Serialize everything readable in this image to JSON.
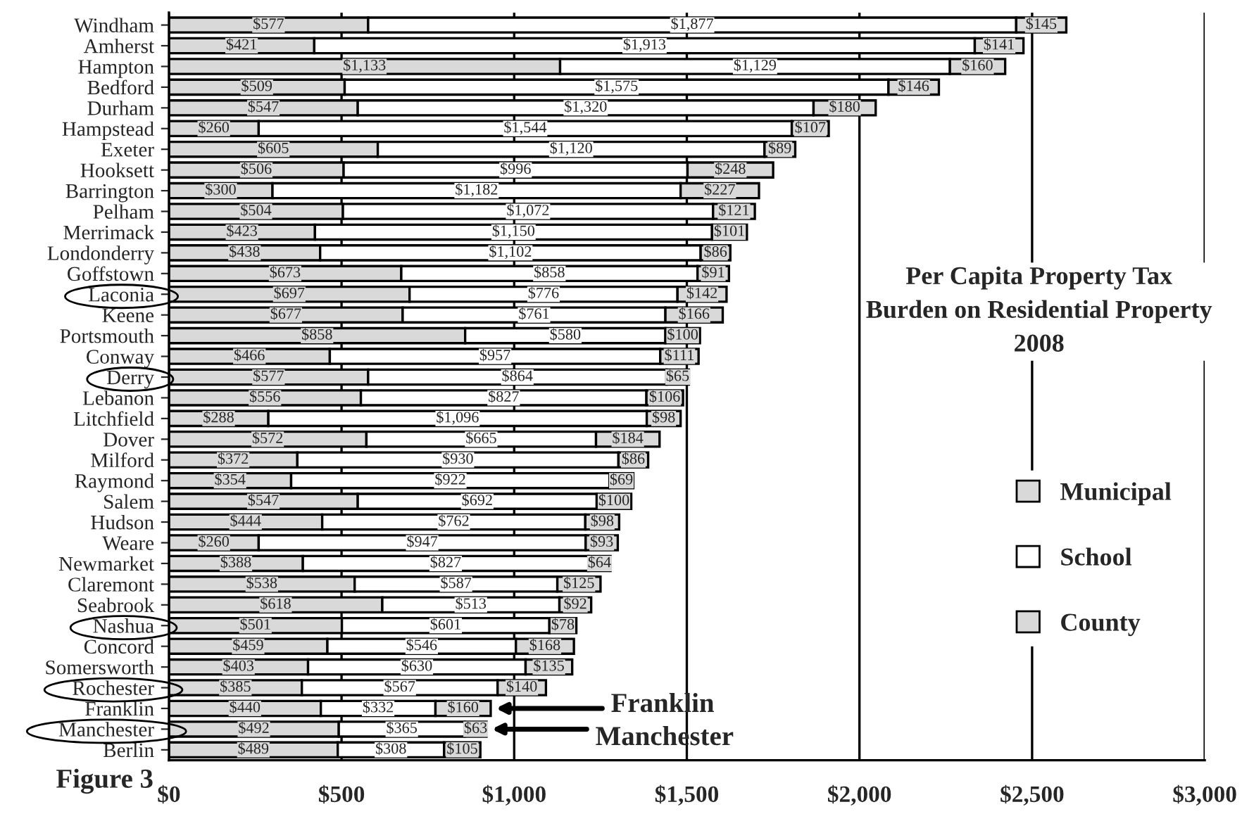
{
  "chart_data": {
    "type": "bar",
    "orientation": "horizontal",
    "stacked": true,
    "title": "Per Capita Property Tax\nBurden on Residential Property\n2008",
    "categories": [
      "Windham",
      "Amherst",
      "Hampton",
      "Bedford",
      "Durham",
      "Hampstead",
      "Exeter",
      "Hooksett",
      "Barrington",
      "Pelham",
      "Merrimack",
      "Londonderry",
      "Goffstown",
      "Laconia",
      "Keene",
      "Portsmouth",
      "Conway",
      "Derry",
      "Lebanon",
      "Litchfield",
      "Dover",
      "Milford",
      "Raymond",
      "Salem",
      "Hudson",
      "Weare",
      "Newmarket",
      "Claremont",
      "Seabrook",
      "Nashua",
      "Concord",
      "Somersworth",
      "Rochester",
      "Franklin",
      "Manchester",
      "Berlin"
    ],
    "series": [
      {
        "name": "Municipal",
        "color": "#d9d9d9",
        "values": [
          577,
          421,
          1133,
          509,
          547,
          260,
          605,
          506,
          300,
          504,
          423,
          438,
          673,
          697,
          677,
          858,
          466,
          577,
          556,
          288,
          572,
          372,
          354,
          547,
          444,
          260,
          388,
          538,
          618,
          501,
          459,
          403,
          385,
          440,
          492,
          489
        ],
        "value_labels": [
          "$577",
          "$421",
          "$1,133",
          "$509",
          "$547",
          "$260",
          "$605",
          "$506",
          "$300",
          "$504",
          "$423",
          "$438",
          "$673",
          "$697",
          "$677",
          "$858",
          "$466",
          "$577",
          "$556",
          "$288",
          "$572",
          "$372",
          "$354",
          "$547",
          "$444",
          "$260",
          "$388",
          "$538",
          "$618",
          "$501",
          "$459",
          "$403",
          "$385",
          "$440",
          "$492",
          "$489"
        ]
      },
      {
        "name": "School",
        "color": "#ffffff",
        "values": [
          1877,
          1913,
          1129,
          1575,
          1320,
          1544,
          1120,
          996,
          1182,
          1072,
          1150,
          1102,
          858,
          776,
          761,
          580,
          957,
          864,
          827,
          1096,
          665,
          930,
          922,
          692,
          762,
          947,
          827,
          587,
          513,
          601,
          546,
          630,
          567,
          332,
          365,
          308
        ],
        "value_labels": [
          "$1,877",
          "$1,913",
          "$1,129",
          "$1,575",
          "$1,320",
          "$1,544",
          "$1,120",
          "$996",
          "$1,182",
          "$1,072",
          "$1,150",
          "$1,102",
          "$858",
          "$776",
          "$761",
          "$580",
          "$957",
          "$864",
          "$827",
          "$1,096",
          "$665",
          "$930",
          "$922",
          "$692",
          "$762",
          "$947",
          "$827",
          "$587",
          "$513",
          "$601",
          "$546",
          "$630",
          "$567",
          "$332",
          "$365",
          "$308"
        ]
      },
      {
        "name": "County",
        "color": "#d9d9d9",
        "values": [
          145,
          141,
          160,
          146,
          180,
          107,
          89,
          248,
          227,
          121,
          101,
          86,
          91,
          142,
          166,
          100,
          111,
          65,
          106,
          98,
          184,
          86,
          69,
          100,
          98,
          93,
          64,
          125,
          92,
          78,
          168,
          135,
          140,
          160,
          63,
          105
        ],
        "value_labels": [
          "$145",
          "$141",
          "$160",
          "$146",
          "$180",
          "$107",
          "$89",
          "$248",
          "$227",
          "$121",
          "$101",
          "$86",
          "$91",
          "$142",
          "$166",
          "$100",
          "$111",
          "$65",
          "$106",
          "$98",
          "$184",
          "$86",
          "$69",
          "$100",
          "$98",
          "$93",
          "$64",
          "$125",
          "$92",
          "$78",
          "$168",
          "$135",
          "$140",
          "$160",
          "$63",
          "$105"
        ]
      }
    ],
    "xlim": [
      0,
      3000
    ],
    "xticks": [
      {
        "value": 0,
        "label": "$0"
      },
      {
        "value": 500,
        "label": "$500"
      },
      {
        "value": 1000,
        "label": "$1,000"
      },
      {
        "value": 1500,
        "label": "$1,500"
      },
      {
        "value": 2000,
        "label": "$2,000"
      },
      {
        "value": 2500,
        "label": "$2,500"
      },
      {
        "value": 3000,
        "label": "$3,000"
      }
    ],
    "grid": "x",
    "legend": "right",
    "data_labels": true,
    "annotations": [
      "Franklin",
      "Manchester",
      "Figure 3"
    ]
  }
}
